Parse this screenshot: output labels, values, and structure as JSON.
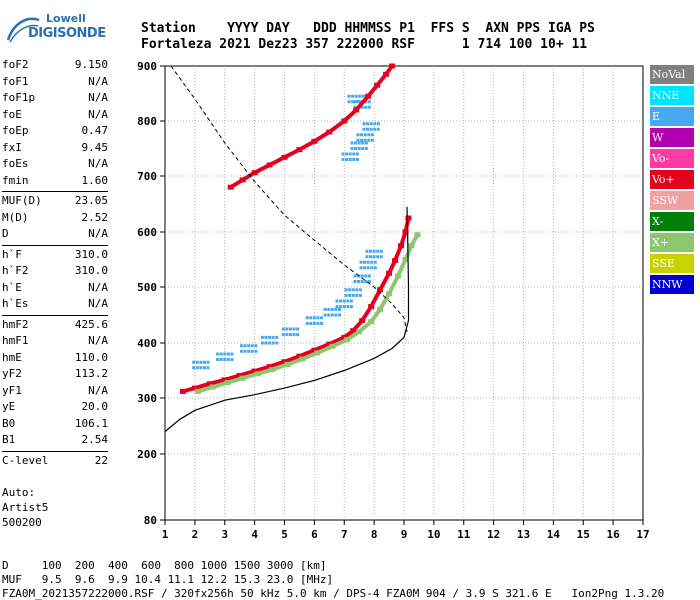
{
  "logo": {
    "line1": "Lowell",
    "line2": "DIGISONDE"
  },
  "header": {
    "row1": "Station    YYYY DAY   DDD HHMMSS P1  FFS S  AXN PPS IGA PS",
    "row2": "Fortaleza 2021 Dez23 357 222000 RSF      1 714 100 10+ 11"
  },
  "params": [
    [
      {
        "label": "foF2",
        "value": "9.150"
      },
      {
        "label": "foF1",
        "value": "N/A"
      },
      {
        "label": "foF1p",
        "value": "N/A"
      },
      {
        "label": "foE",
        "value": "N/A"
      },
      {
        "label": "foEp",
        "value": "0.47"
      },
      {
        "label": "fxI",
        "value": "9.45"
      },
      {
        "label": "foEs",
        "value": "N/A"
      },
      {
        "label": "fmin",
        "value": "1.60"
      }
    ],
    [
      {
        "label": "MUF(D)",
        "value": "23.05"
      },
      {
        "label": "M(D)",
        "value": "2.52"
      },
      {
        "label": "D",
        "value": "N/A"
      }
    ],
    [
      {
        "label": "h`F",
        "value": "310.0"
      },
      {
        "label": "h`F2",
        "value": "310.0"
      },
      {
        "label": "h`E",
        "value": "N/A"
      },
      {
        "label": "h`Es",
        "value": "N/A"
      }
    ],
    [
      {
        "label": "hmF2",
        "value": "425.6"
      },
      {
        "label": "hmF1",
        "value": "N/A"
      },
      {
        "label": "hmE",
        "value": "110.0"
      },
      {
        "label": "yF2",
        "value": "113.2"
      },
      {
        "label": "yF1",
        "value": "N/A"
      },
      {
        "label": "yE",
        "value": "20.0"
      },
      {
        "label": "B0",
        "value": "106.1"
      },
      {
        "label": "B1",
        "value": "2.54"
      }
    ],
    [
      {
        "label": "C-level",
        "value": "22"
      }
    ]
  ],
  "auto": {
    "line1": "Auto:",
    "line2": "Artist5",
    "line3": "500200"
  },
  "footer": {
    "d_row": "D     100  200  400  600  800 1000 1500 3000 [km]",
    "muf_row": "MUF   9.5  9.6  9.9 10.4 11.1 12.2 15.3 23.0 [MHz]",
    "file_row": "FZA0M_2021357222000.RSF / 320fx256h 50 kHz 5.0 km / DPS-4 FZA0M 904 / 3.9 S 321.6 E   Ion2Png 1.3.20"
  },
  "legend": [
    {
      "label": "NoVal",
      "color": "#808080"
    },
    {
      "label": "NNE",
      "color": "#00e5ff"
    },
    {
      "label": "E",
      "color": "#49a9f0"
    },
    {
      "label": "W",
      "color": "#b000b0"
    },
    {
      "label": "Vo-",
      "color": "#ff3aa5"
    },
    {
      "label": "Vo+",
      "color": "#e60020"
    },
    {
      "label": "SSW",
      "color": "#f0a0a0"
    },
    {
      "label": "X-",
      "color": "#00800a"
    },
    {
      "label": "X+",
      "color": "#8cc66e"
    },
    {
      "label": "SSE",
      "color": "#c8d200"
    },
    {
      "label": "NNW",
      "color": "#0000d0"
    }
  ],
  "chart_data": {
    "type": "scatter",
    "xlabel": "",
    "ylabel": "",
    "xlim": [
      1,
      17
    ],
    "ylim": [
      80,
      900
    ],
    "x_ticks": [
      1,
      2,
      3,
      4,
      5,
      6,
      7,
      8,
      9,
      10,
      11,
      12,
      13,
      14,
      15,
      16,
      17
    ],
    "y_ticks": [
      80,
      200,
      300,
      400,
      500,
      600,
      700,
      800,
      900
    ],
    "grid": true,
    "traces": [
      {
        "name": "o-trace",
        "color": "#e60020",
        "points": [
          [
            1.6,
            312
          ],
          [
            2.0,
            318
          ],
          [
            2.5,
            326
          ],
          [
            3.0,
            333
          ],
          [
            3.5,
            341
          ],
          [
            4.0,
            349
          ],
          [
            4.5,
            357
          ],
          [
            5.0,
            366
          ],
          [
            5.5,
            376
          ],
          [
            6.0,
            387
          ],
          [
            6.5,
            398
          ],
          [
            7.0,
            410
          ],
          [
            7.3,
            422
          ],
          [
            7.6,
            440
          ],
          [
            7.9,
            465
          ],
          [
            8.2,
            495
          ],
          [
            8.5,
            525
          ],
          [
            8.7,
            548
          ],
          [
            8.9,
            575
          ],
          [
            9.05,
            600
          ],
          [
            9.15,
            625
          ]
        ]
      },
      {
        "name": "x-trace",
        "color": "#8cc66e",
        "points": [
          [
            2.1,
            312
          ],
          [
            2.6,
            320
          ],
          [
            3.1,
            328
          ],
          [
            3.6,
            336
          ],
          [
            4.1,
            344
          ],
          [
            4.6,
            352
          ],
          [
            5.1,
            361
          ],
          [
            5.6,
            371
          ],
          [
            6.1,
            382
          ],
          [
            6.6,
            394
          ],
          [
            7.1,
            406
          ],
          [
            7.5,
            420
          ],
          [
            7.9,
            438
          ],
          [
            8.2,
            460
          ],
          [
            8.5,
            488
          ],
          [
            8.8,
            520
          ],
          [
            9.05,
            550
          ],
          [
            9.25,
            575
          ],
          [
            9.45,
            595
          ]
        ]
      },
      {
        "name": "o-trace-2hop",
        "color": "#e60020",
        "points": [
          [
            3.2,
            680
          ],
          [
            3.6,
            693
          ],
          [
            4.0,
            706
          ],
          [
            4.5,
            720
          ],
          [
            5.0,
            734
          ],
          [
            5.5,
            748
          ],
          [
            6.0,
            763
          ],
          [
            6.5,
            780
          ],
          [
            7.0,
            800
          ],
          [
            7.4,
            820
          ],
          [
            7.8,
            845
          ],
          [
            8.1,
            865
          ],
          [
            8.4,
            885
          ],
          [
            8.6,
            900
          ]
        ]
      },
      {
        "name": "spread-F",
        "color": "#49a9f0",
        "points": [
          [
            2.2,
            360
          ],
          [
            3.0,
            375
          ],
          [
            3.8,
            390
          ],
          [
            4.5,
            405
          ],
          [
            5.2,
            420
          ],
          [
            6.0,
            440
          ],
          [
            6.6,
            455
          ],
          [
            7.0,
            470
          ],
          [
            7.3,
            490
          ],
          [
            7.6,
            515
          ],
          [
            7.8,
            540
          ],
          [
            8.0,
            560
          ],
          [
            7.2,
            735
          ],
          [
            7.5,
            755
          ],
          [
            7.7,
            770
          ],
          [
            7.9,
            790
          ],
          [
            7.6,
            830
          ],
          [
            7.4,
            840
          ]
        ]
      }
    ],
    "profile": [
      [
        1.0,
        240
      ],
      [
        1.5,
        262
      ],
      [
        2.0,
        278
      ],
      [
        3.0,
        296
      ],
      [
        4.0,
        306
      ],
      [
        5.0,
        318
      ],
      [
        6.0,
        332
      ],
      [
        7.0,
        350
      ],
      [
        8.0,
        372
      ],
      [
        8.6,
        390
      ],
      [
        9.0,
        410
      ],
      [
        9.15,
        440
      ],
      [
        9.15,
        500
      ],
      [
        9.12,
        600
      ],
      [
        9.1,
        645
      ]
    ],
    "muf_curve": [
      [
        1.2,
        900
      ],
      [
        2.0,
        840
      ],
      [
        3.0,
        760
      ],
      [
        4.0,
        690
      ],
      [
        5.0,
        630
      ],
      [
        6.0,
        585
      ],
      [
        7.0,
        540
      ],
      [
        8.0,
        500
      ],
      [
        8.6,
        470
      ],
      [
        9.0,
        445
      ],
      [
        9.1,
        420
      ]
    ]
  }
}
